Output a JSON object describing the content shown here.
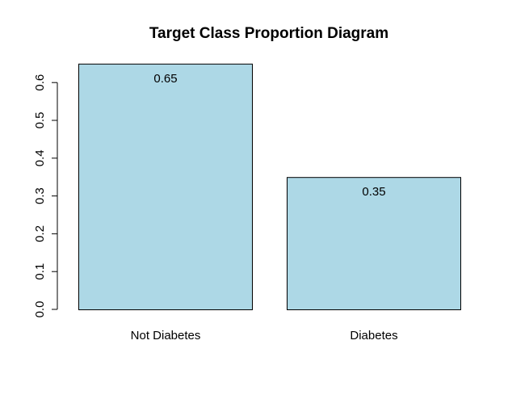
{
  "chart_data": {
    "type": "bar",
    "title": "Target Class Proportion Diagram",
    "xlabel": "",
    "ylabel": "",
    "categories": [
      "Not Diabetes",
      "Diabetes"
    ],
    "values": [
      0.65,
      0.35
    ],
    "data_labels": [
      "0.65",
      "0.35"
    ],
    "ylim": [
      0,
      0.6
    ],
    "yticks": [
      0.0,
      0.1,
      0.2,
      0.3,
      0.4,
      0.5,
      0.6
    ],
    "ytick_labels": [
      "0.0",
      "0.1",
      "0.2",
      "0.3",
      "0.4",
      "0.5",
      "0.6"
    ],
    "grid": false,
    "legend": "none",
    "colors": {
      "bar_fill": "#add8e6",
      "bar_stroke": "#000000",
      "axis": "#000000",
      "text": "#000000"
    }
  }
}
